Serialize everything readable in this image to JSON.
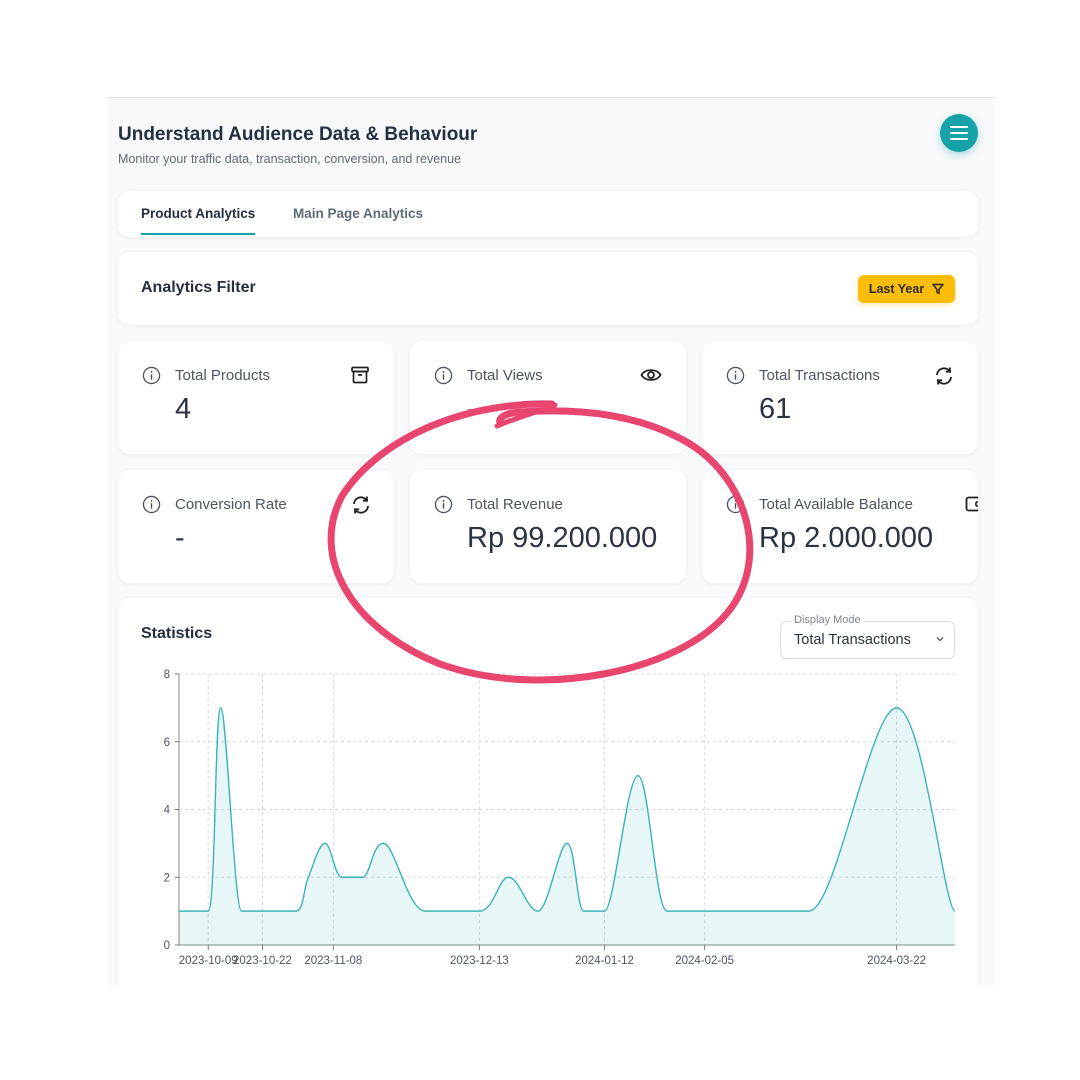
{
  "header": {
    "title": "Understand Audience Data & Behaviour",
    "subtitle": "Monitor your traffic data, transaction, conversion, and revenue",
    "menu_icon": "hamburger-menu-icon"
  },
  "tabs": [
    {
      "label": "Product Analytics",
      "active": true
    },
    {
      "label": "Main Page Analytics",
      "active": false
    }
  ],
  "filter": {
    "title": "Analytics Filter",
    "button_label": "Last Year",
    "button_icon": "filter-icon"
  },
  "stats": [
    {
      "label": "Total Products",
      "value": "4",
      "icon": "archive-icon"
    },
    {
      "label": "Total Views",
      "value": "-",
      "icon": "eye-icon"
    },
    {
      "label": "Total Transactions",
      "value": "61",
      "icon": "refresh-icon"
    },
    {
      "label": "Conversion Rate",
      "value": "-",
      "icon": "refresh-icon"
    },
    {
      "label": "Total Revenue",
      "value": "Rp 99.200.000",
      "icon": null
    },
    {
      "label": "Total Available Balance",
      "value": "Rp 2.000.000",
      "icon": "wallet-icon"
    }
  ],
  "statistics": {
    "title": "Statistics",
    "display_mode_label": "Display Mode",
    "display_mode_value": "Total Transactions"
  },
  "colors": {
    "accent": "#17a2a8",
    "filter_button": "#fbbd08",
    "annotation": "#e8456f"
  },
  "chart_data": {
    "type": "area",
    "xlabel": "",
    "ylabel": "",
    "ylim": [
      0,
      8
    ],
    "yticks": [
      0,
      2,
      4,
      6,
      8
    ],
    "xticks": [
      "2023-10-09",
      "2023-10-22",
      "2023-11-08",
      "2023-12-13",
      "2024-01-12",
      "2024-02-05",
      "2024-03-22"
    ],
    "x": [
      "2023-10-02",
      "2023-10-09",
      "2023-10-12",
      "2023-10-17",
      "2023-10-22",
      "2023-10-30",
      "2023-11-02",
      "2023-11-06",
      "2023-11-10",
      "2023-11-15",
      "2023-11-20",
      "2023-11-30",
      "2023-12-13",
      "2023-12-20",
      "2023-12-27",
      "2024-01-03",
      "2024-01-07",
      "2024-01-12",
      "2024-01-20",
      "2024-01-27",
      "2024-02-05",
      "2024-02-15",
      "2024-03-01",
      "2024-03-22",
      "2024-04-05"
    ],
    "values": [
      1,
      1,
      7,
      1,
      1,
      1,
      2,
      3,
      2,
      2,
      3,
      1,
      1,
      2,
      1,
      3,
      1,
      1,
      5,
      1,
      1,
      1,
      1,
      7,
      1
    ],
    "grid": true
  }
}
